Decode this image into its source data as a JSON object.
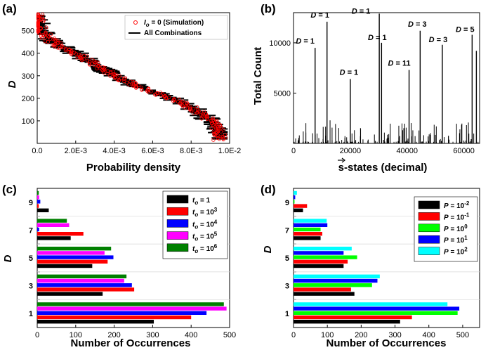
{
  "chart_data": [
    {
      "panel": "(a)",
      "type": "scatter",
      "xlabel": "Probability density",
      "ylabel": "D",
      "xlim": [
        0,
        0.01
      ],
      "ylim": [
        0,
        580
      ],
      "x_ticks": [
        "0.0",
        "2.0E-3",
        "4.0E-3",
        "6.0E-3",
        "8.0E-3",
        "1.0E-2"
      ],
      "y_ticks": [
        "100",
        "200",
        "300",
        "400",
        "500"
      ],
      "legend": [
        "I_o = 0 (Simulation)",
        "All Combinations"
      ],
      "curve_points": [
        [
          0.0,
          580
        ],
        [
          0.0002,
          500
        ],
        [
          0.0008,
          450
        ],
        [
          0.0015,
          420
        ],
        [
          0.002,
          400
        ],
        [
          0.003,
          350
        ],
        [
          0.004,
          300
        ],
        [
          0.005,
          260
        ],
        [
          0.006,
          230
        ],
        [
          0.007,
          200
        ],
        [
          0.008,
          160
        ],
        [
          0.009,
          100
        ],
        [
          0.0095,
          50
        ]
      ]
    },
    {
      "panel": "(b)",
      "type": "bar",
      "xlabel": "s-states (decimal)",
      "ylabel": "Total Count",
      "xlim": [
        0,
        65536
      ],
      "ylim": [
        0,
        13000
      ],
      "x_ticks": [
        "0",
        "20000",
        "40000",
        "60000"
      ],
      "y_ticks": [
        "5000",
        "10000"
      ],
      "peaks": [
        {
          "x": 7600,
          "y": 9500,
          "label": "D = 1"
        },
        {
          "x": 11800,
          "y": 12100,
          "label": "D = 1"
        },
        {
          "x": 20000,
          "y": 6400,
          "label": "D = 1"
        },
        {
          "x": 30200,
          "y": 12900,
          "label": "D = 1"
        },
        {
          "x": 31000,
          "y": 10000,
          "label": "D = 1"
        },
        {
          "x": 40700,
          "y": 7300,
          "label": "D = 11"
        },
        {
          "x": 44600,
          "y": 11200,
          "label": "D = 3"
        },
        {
          "x": 52400,
          "y": 9800,
          "label": "D = 3"
        },
        {
          "x": 62900,
          "y": 10800,
          "label": "D = 5"
        },
        {
          "x": 64400,
          "y": 9200,
          "label": ""
        }
      ]
    },
    {
      "panel": "(c)",
      "type": "bar",
      "orientation": "horizontal",
      "xlabel": "Number of Occurrences",
      "ylabel": "D",
      "xlim": [
        0,
        500
      ],
      "x_ticks": [
        "0",
        "100",
        "200",
        "300",
        "400",
        "500"
      ],
      "categories": [
        "1",
        "3",
        "5",
        "7",
        "9"
      ],
      "legend_prefix": "t",
      "legend_sub": "o",
      "series": [
        {
          "name": "= 1",
          "color": "#000000",
          "values": [
            303,
            170,
            143,
            87,
            30
          ]
        },
        {
          "name": "= 10^3",
          "color": "#ff0000",
          "values": [
            400,
            252,
            183,
            120,
            4
          ]
        },
        {
          "name": "= 10^4",
          "color": "#0000ff",
          "values": [
            440,
            246,
            198,
            5,
            8
          ]
        },
        {
          "name": "= 10^5",
          "color": "#ff00ff",
          "values": [
            492,
            226,
            175,
            83,
            5
          ]
        },
        {
          "name": "= 10^6",
          "color": "#008000",
          "values": [
            485,
            232,
            192,
            77,
            4
          ]
        }
      ]
    },
    {
      "panel": "(d)",
      "type": "bar",
      "orientation": "horizontal",
      "xlabel": "Number of Occurrences",
      "ylabel": "D",
      "xlim": [
        0,
        550
      ],
      "x_ticks": [
        "0",
        "100",
        "200",
        "300",
        "400",
        "500"
      ],
      "categories": [
        "1",
        "3",
        "5",
        "7",
        "9"
      ],
      "legend_prefix": "P",
      "series": [
        {
          "name": "= 10^-2",
          "color": "#000000",
          "values": [
            315,
            180,
            148,
            80,
            28
          ]
        },
        {
          "name": "= 10^-1",
          "color": "#ff0000",
          "values": [
            350,
            170,
            160,
            85,
            40
          ]
        },
        {
          "name": "= 10^0",
          "color": "#00ff00",
          "values": [
            485,
            232,
            188,
            80,
            3
          ]
        },
        {
          "name": "= 10^1",
          "color": "#0000ff",
          "values": [
            490,
            248,
            148,
            100,
            5
          ]
        },
        {
          "name": "= 10^2",
          "color": "#00ffff",
          "values": [
            455,
            255,
            172,
            98,
            10
          ]
        }
      ]
    }
  ],
  "annotations": {
    "panel_b_xlabel_vec": "s"
  }
}
